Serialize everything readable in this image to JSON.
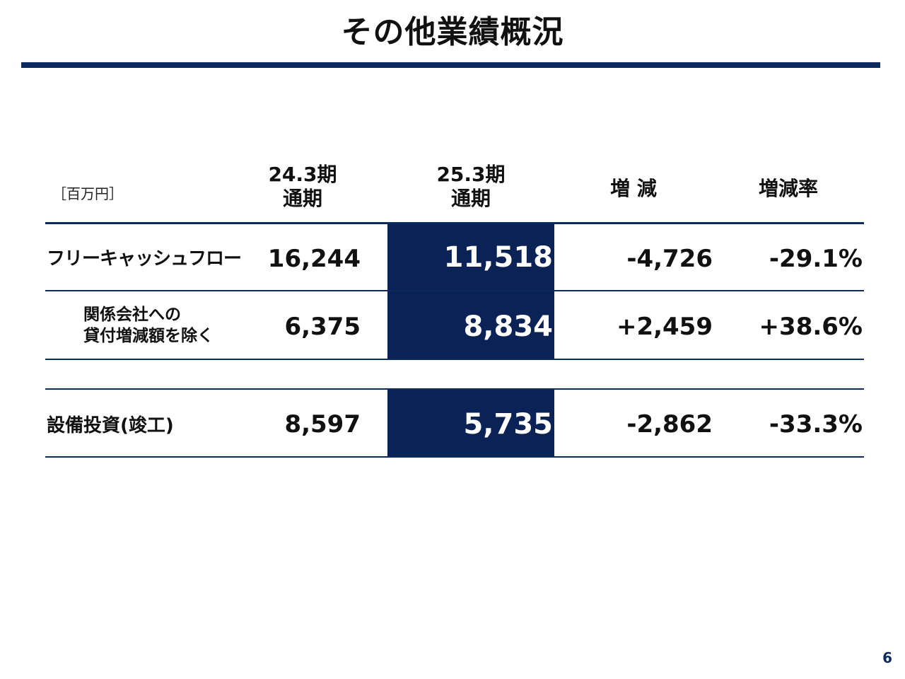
{
  "title": "その他業績概況",
  "unit": "［百万円］",
  "columns": {
    "prev": {
      "line1": "24.3期",
      "line2": "通期"
    },
    "curr": {
      "line1": "25.3期",
      "line2": "通期"
    },
    "change": "増 減",
    "rate": "増減率"
  },
  "rows": [
    {
      "label": "フリーキャッシュフロー",
      "prev": "16,244",
      "curr": "11,518",
      "change": "-4,726",
      "rate": "-29.1%"
    },
    {
      "label_line1": "関係会社への",
      "label_line2": "貸付増減額を除く",
      "prev": "6,375",
      "curr": "8,834",
      "change": "+2,459",
      "rate": "+38.6%"
    },
    {
      "label": "設備投資(竣工)",
      "prev": "8,597",
      "curr": "5,735",
      "change": "-2,862",
      "rate": "-33.3%"
    }
  ],
  "page_number": "6",
  "colors": {
    "accent": "#0b2a5e",
    "highlight": "#0b2257",
    "highlight_text": "#ffffff"
  }
}
